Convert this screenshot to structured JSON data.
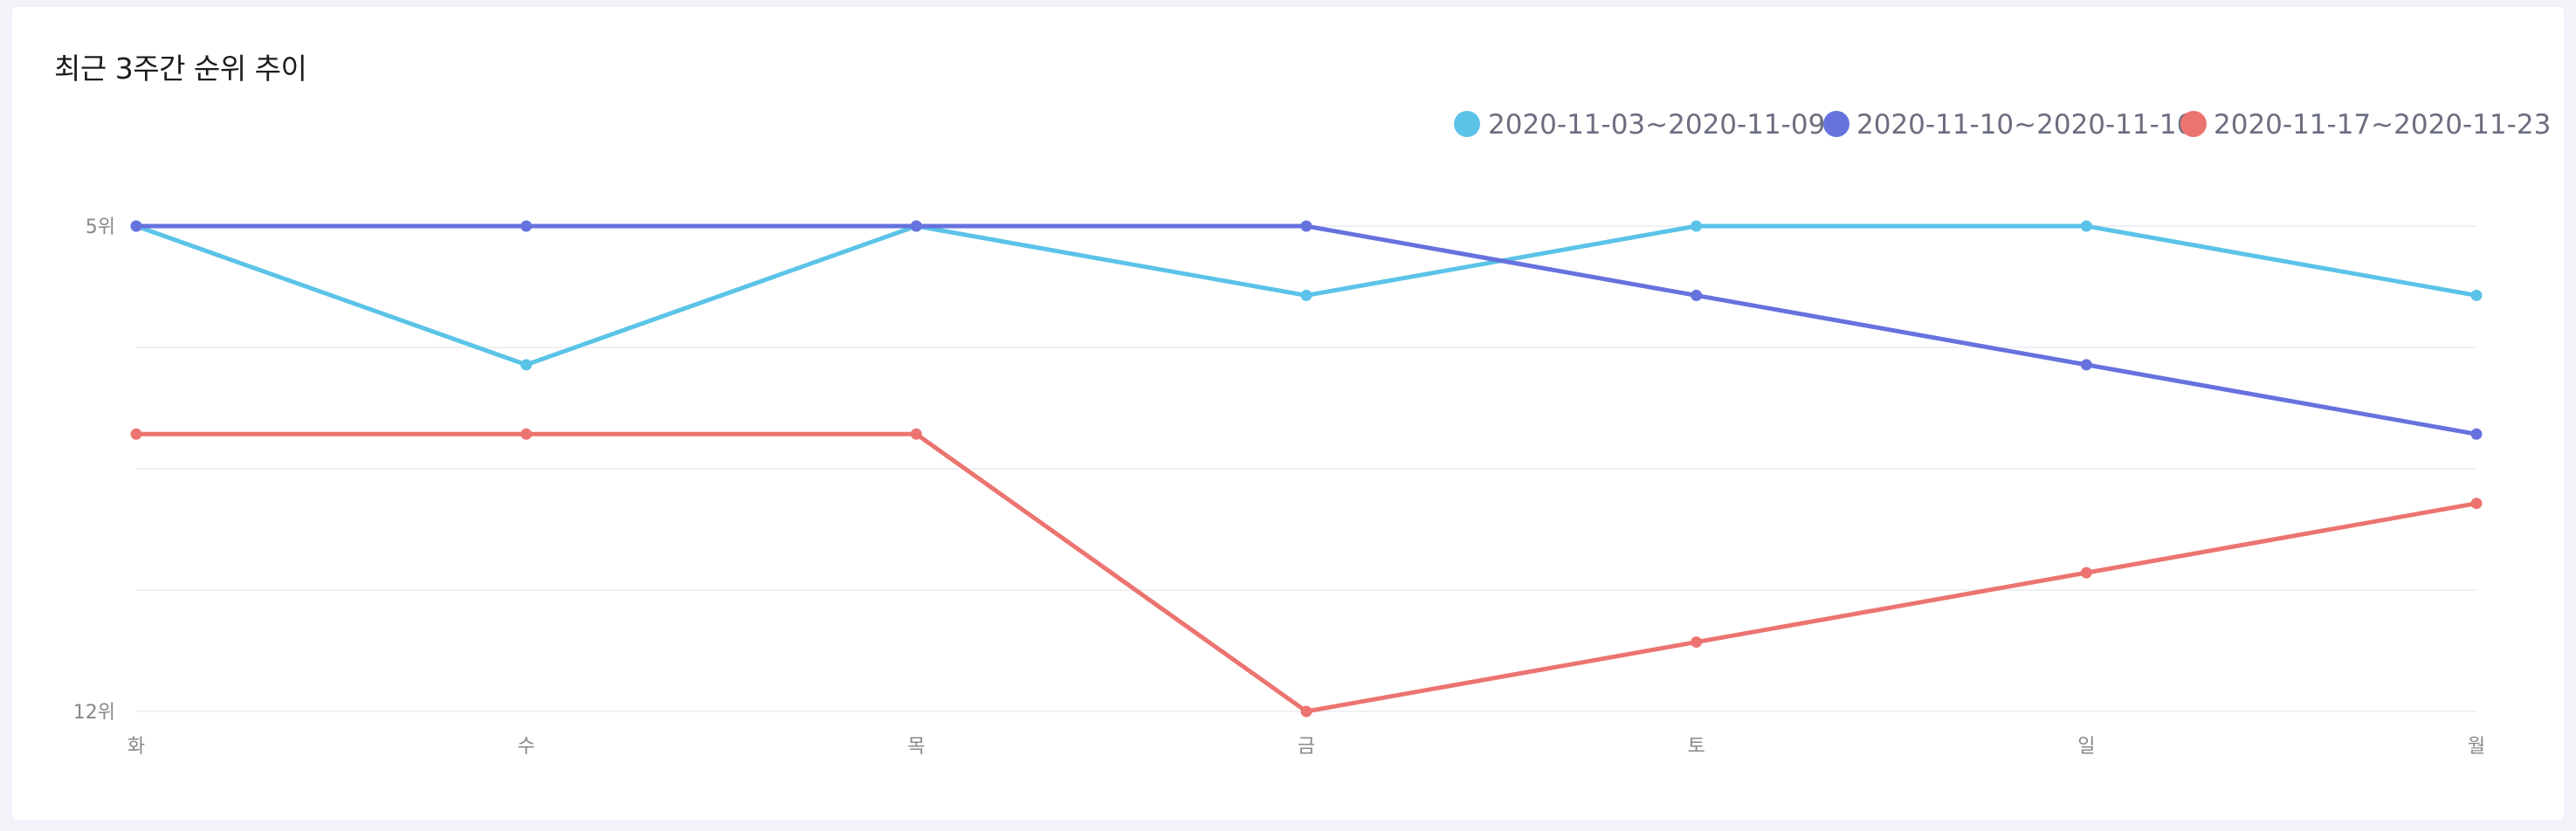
{
  "card": {
    "title": "최근 3주간 순위 추이"
  },
  "chart_data": {
    "type": "line",
    "title": "최근 3주간 순위 추이",
    "categories": [
      "화",
      "수",
      "목",
      "금",
      "토",
      "일",
      "월"
    ],
    "y_axis": {
      "inverted": true,
      "ylim": [
        5,
        12
      ],
      "tick_values": [
        5,
        12
      ],
      "tick_labels": [
        "5위",
        "12위"
      ],
      "gridlines": true
    },
    "legend": {
      "position": "top-right"
    },
    "series": [
      {
        "name": "2020-11-03~2020-11-09",
        "color": "#5bc3e8",
        "values": [
          5,
          7,
          5,
          6,
          5,
          5,
          6
        ]
      },
      {
        "name": "2020-11-10~2020-11-16",
        "color": "#6672de",
        "values": [
          5,
          5,
          5,
          5,
          6,
          7,
          8
        ]
      },
      {
        "name": "2020-11-17~2020-11-23",
        "color": "#ec7470",
        "values": [
          8,
          8,
          8,
          12,
          11,
          10,
          9
        ]
      }
    ]
  }
}
